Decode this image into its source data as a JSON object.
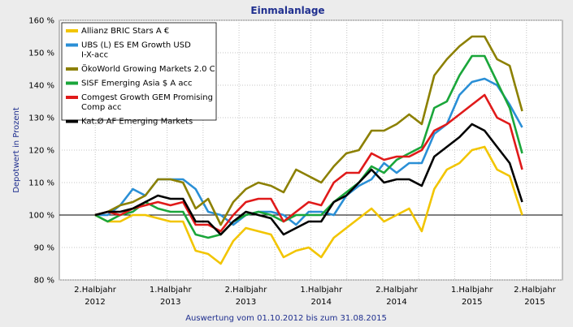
{
  "chart_data": {
    "type": "line",
    "title": "Einmalanlage",
    "ylabel": "Depotwert in Prozent",
    "xlabel": "Auswertung vom 01.10.2012 bis zum 31.08.2015",
    "ylim": [
      80,
      160
    ],
    "yticks": [
      "80 %",
      "90 %",
      "100 %",
      "110 %",
      "120 %",
      "130 %",
      "140 %",
      "150 %",
      "160 %"
    ],
    "ytick_values": [
      80,
      90,
      100,
      110,
      120,
      130,
      140,
      150,
      160
    ],
    "xlim": [
      0,
      35
    ],
    "xtick_labels": [
      {
        "line1": "2.Halbjahr",
        "line2": "2012",
        "pos": 0
      },
      {
        "line1": "1.Halbjahr",
        "line2": "2013",
        "pos": 6
      },
      {
        "line1": "2.Halbjahr",
        "line2": "2013",
        "pos": 12
      },
      {
        "line1": "1.Halbjahr",
        "line2": "2014",
        "pos": 18
      },
      {
        "line1": "2.Halbjahr",
        "line2": "2014",
        "pos": 24
      },
      {
        "line1": "1.Halbjahr",
        "line2": "2015",
        "pos": 30
      },
      {
        "line1": "2.Halbjahr",
        "line2": "2015",
        "pos": 35
      }
    ],
    "reference_line": 100,
    "grid": true,
    "legend_position": "top-left",
    "series": [
      {
        "name": "Allianz BRIC Stars A €",
        "color": "#f2c500",
        "values": [
          100,
          98,
          98,
          100,
          100,
          99,
          98,
          98,
          89,
          88,
          85,
          92,
          96,
          95,
          94,
          87,
          89,
          90,
          87,
          93,
          96,
          99,
          102,
          98,
          100,
          102,
          95,
          108,
          114,
          116,
          120,
          121,
          114,
          112,
          100
        ]
      },
      {
        "name": "UBS (L) ES EM Growth USD I-X-acc",
        "color": "#2a8fd6",
        "values": [
          100,
          100,
          103,
          108,
          106,
          111,
          111,
          111,
          108,
          101,
          100,
          97,
          100,
          101,
          101,
          100,
          97,
          101,
          101,
          100,
          106,
          109,
          111,
          116,
          113,
          116,
          116,
          125,
          128,
          137,
          141,
          142,
          140,
          134,
          127
        ]
      },
      {
        "name": "ÖkoWorld Growing Markets 2.0 C",
        "color": "#8c8000",
        "values": [
          100,
          101,
          103,
          104,
          106,
          111,
          111,
          110,
          102,
          105,
          97,
          104,
          108,
          110,
          109,
          107,
          114,
          112,
          110,
          115,
          119,
          120,
          126,
          126,
          128,
          131,
          128,
          143,
          148,
          152,
          155,
          155,
          148,
          146,
          132
        ]
      },
      {
        "name": "SISF Emerging Asia $ A acc",
        "color": "#1aa63a",
        "values": [
          100,
          98,
          100,
          101,
          104,
          102,
          101,
          101,
          94,
          93,
          94,
          98,
          100,
          101,
          100,
          98,
          100,
          100,
          100,
          104,
          107,
          110,
          115,
          113,
          117,
          119,
          121,
          133,
          135,
          143,
          149,
          149,
          141,
          133,
          119
        ]
      },
      {
        "name": "Comgest Growth GEM Promising Comp acc",
        "color": "#e01a1a",
        "values": [
          100,
          101,
          100,
          102,
          103,
          104,
          103,
          104,
          97,
          97,
          95,
          100,
          104,
          105,
          105,
          98,
          101,
          104,
          103,
          110,
          113,
          113,
          119,
          117,
          118,
          118,
          120,
          126,
          128,
          131,
          134,
          137,
          130,
          128,
          114
        ]
      },
      {
        "name": "Kat.Ø AF Emerging Markets",
        "color": "#000000",
        "values": [
          100,
          101,
          101,
          102,
          104,
          106,
          105,
          105,
          98,
          98,
          94,
          98,
          101,
          100,
          99,
          94,
          96,
          98,
          98,
          104,
          106,
          110,
          114,
          110,
          111,
          111,
          109,
          118,
          121,
          124,
          128,
          126,
          121,
          116,
          104
        ]
      }
    ]
  }
}
